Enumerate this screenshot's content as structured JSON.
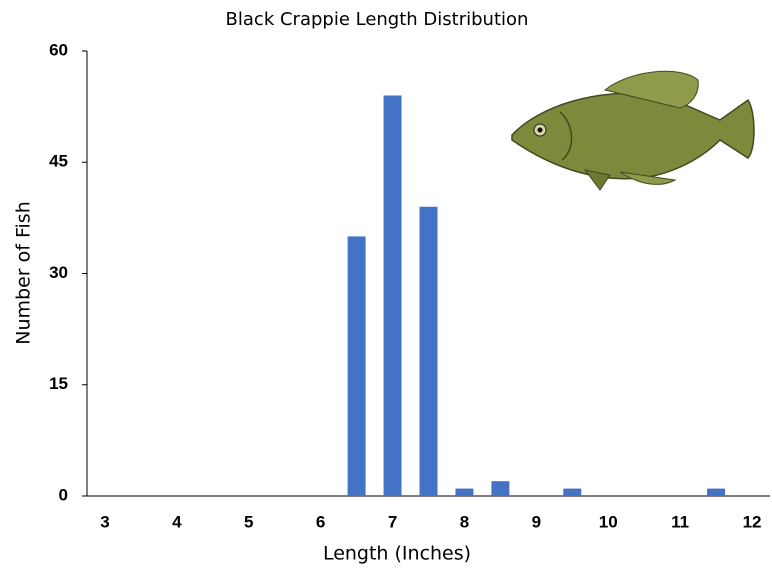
{
  "chart_data": {
    "type": "bar",
    "title": "Black Crappie Length Distribution",
    "x_label": "Length (Inches)",
    "y_label": "Number of Fish",
    "categories": [
      "3",
      null,
      "4",
      null,
      "5",
      null,
      "6",
      null,
      "7",
      null,
      "8",
      null,
      "9",
      null,
      "10",
      null,
      "11",
      null,
      "12"
    ],
    "values": [
      0,
      0,
      0,
      0,
      0,
      0,
      0,
      35,
      54,
      39,
      1,
      2,
      0,
      1,
      0,
      0,
      0,
      1,
      0
    ],
    "color": "#4472c4",
    "ylim": [
      0,
      60
    ],
    "yticks": [
      0,
      15,
      30,
      45,
      60
    ],
    "grid": false
  }
}
